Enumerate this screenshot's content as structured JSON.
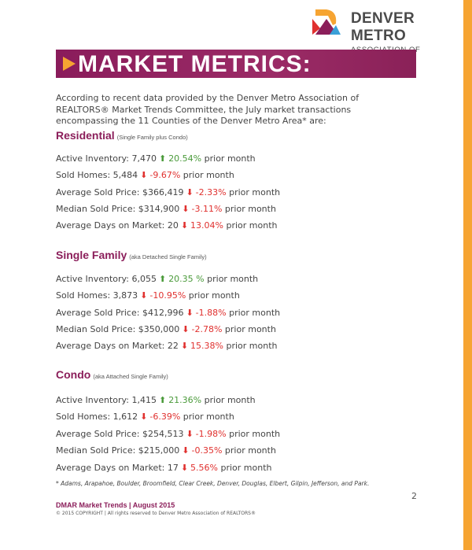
{
  "header": {
    "org_name": "DENVER METRO",
    "org_sub": "ASSOCIATION OF REALTORS®",
    "banner_title": "MARKET METRICS:"
  },
  "colors": {
    "accent": "#8b1e5a",
    "orange": "#f6a432",
    "up": "#4a9a3a",
    "down": "#e0312f"
  },
  "intro": "According to recent data provided by the Denver Metro Association of REALTORS® Market Trends Committee, the July market transactions encompassing the 11 Counties of the Denver Metro Area* are:",
  "sections": [
    {
      "title": "Residential",
      "subtitle": "(Single Family plus Condo)",
      "rows": [
        {
          "label": "Active Inventory: 7,470",
          "dir": "up",
          "change": "20.54%",
          "suffix": "prior month"
        },
        {
          "label": "Sold Homes: 5,484",
          "dir": "down",
          "change": "-9.67%",
          "suffix": "prior month"
        },
        {
          "label": "Average Sold Price: $366,419",
          "dir": "down",
          "change": "-2.33%",
          "suffix": "prior month"
        },
        {
          "label": "Median Sold Price: $314,900",
          "dir": "down",
          "change": "-3.11%",
          "suffix": "prior month"
        },
        {
          "label": "Average Days on Market: 20",
          "dir": "down",
          "change": "13.04%",
          "suffix": "prior month"
        }
      ]
    },
    {
      "title": "Single Family",
      "subtitle": "(aka Detached Single Family)",
      "rows": [
        {
          "label": "Active Inventory: 6,055",
          "dir": "up",
          "change": "20.35 %",
          "suffix": "prior month"
        },
        {
          "label": "Sold Homes: 3,873",
          "dir": "down",
          "change": "-10.95%",
          "suffix": "prior month"
        },
        {
          "label": "Average Sold Price: $412,996",
          "dir": "down",
          "change": "-1.88%",
          "suffix": "prior month"
        },
        {
          "label": "Median Sold Price: $350,000",
          "dir": "down",
          "change": "-2.78%",
          "suffix": "prior month"
        },
        {
          "label": "Average Days on Market: 22",
          "dir": "down",
          "change": "15.38%",
          "suffix": "prior month"
        }
      ]
    },
    {
      "title": "Condo",
      "subtitle": "(aka Attached Single Family)",
      "rows": [
        {
          "label": "Active Inventory:  1,415",
          "dir": "up",
          "change": "21.36%",
          "suffix": "prior month"
        },
        {
          "label": "Sold Homes: 1,612",
          "dir": "down",
          "change": "-6.39%",
          "suffix": "prior month"
        },
        {
          "label": "Average Sold Price: $254,513",
          "dir": "down",
          "change": "-1.98%",
          "suffix": "prior month"
        },
        {
          "label": "Median Sold Price: $215,000",
          "dir": "down",
          "change": "-0.35%",
          "suffix": "prior month"
        },
        {
          "label": "Average Days on Market: 17",
          "dir": "down",
          "change": "5.56%",
          "suffix": "prior month"
        }
      ]
    }
  ],
  "footnote": "* Adams, Arapahoe, Boulder, Broomfield, Clear Creek, Denver, Douglas, Elbert, Gilpin, Jefferson, and Park.",
  "page_number": "2",
  "footer": {
    "title": "DMAR Market Trends | August 2015",
    "copyright": "© 2015 COPYRIGHT | All rights reserved to Denver Metro Association of REALTORS®"
  }
}
